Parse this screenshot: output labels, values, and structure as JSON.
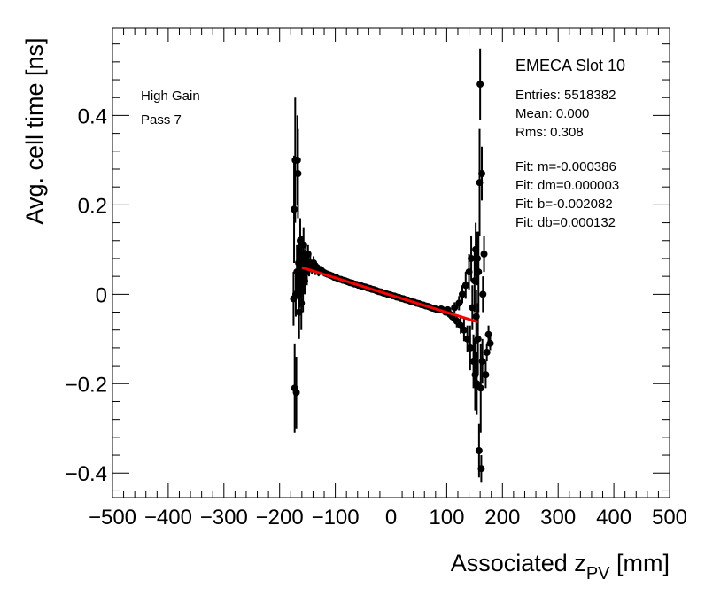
{
  "chart_data": {
    "type": "scatter",
    "xlabel_main": "Associated z",
    "xlabel_sub": "PV",
    "xlabel_unit": " [mm]",
    "ylabel": "Avg. cell time [ns]",
    "xlim": [
      -500,
      500
    ],
    "ylim": [
      -0.455,
      0.595
    ],
    "x_ticks": [
      -500,
      -400,
      -300,
      -200,
      -100,
      0,
      100,
      200,
      300,
      400,
      500
    ],
    "x_tick_labels": [
      "−500",
      "−400",
      "−300",
      "−200",
      "−100",
      "0",
      "100",
      "200",
      "300",
      "400",
      "500"
    ],
    "y_ticks": [
      -0.4,
      -0.2,
      0,
      0.2,
      0.4
    ],
    "y_tick_labels": [
      "−0.4",
      "−0.2",
      "0",
      "0.2",
      "0.4"
    ],
    "grid": false,
    "legend_left": [
      "High Gain",
      "Pass 7"
    ],
    "stats_title": "EMECA Slot 10",
    "stats_lines": [
      "Entries: 5518382",
      "Mean: 0.000",
      "Rms: 0.308",
      "",
      "Fit: m=-0.000386",
      "Fit: dm=0.000003",
      "Fit: b=-0.002082",
      "Fit: db=0.000132"
    ],
    "fit": {
      "slope": -0.000386,
      "intercept": -0.002082,
      "x_range": [
        -160,
        155
      ],
      "color": "#ff0000"
    },
    "marker_color": "#000000",
    "series": [
      {
        "points": [
          [
            -175,
            -0.01,
            0.06
          ],
          [
            -174,
            0.19,
            0.12
          ],
          [
            -173,
            -0.21,
            0.1
          ],
          [
            -172,
            0.3,
            0.14
          ],
          [
            -171,
            0.0,
            0.05
          ],
          [
            -170,
            -0.22,
            0.08
          ],
          [
            -169,
            0.05,
            0.06
          ],
          [
            -168,
            0.3,
            0.1
          ],
          [
            -167,
            0.27,
            0.1
          ],
          [
            -166,
            0.07,
            0.05
          ],
          [
            -165,
            -0.04,
            0.06
          ],
          [
            -164,
            0.02,
            0.05
          ],
          [
            -163,
            0.12,
            0.05
          ],
          [
            -162,
            0.03,
            0.04
          ],
          [
            -161,
            -0.02,
            0.06
          ],
          [
            -160,
            0.09,
            0.04
          ],
          [
            -159,
            0.04,
            0.04
          ],
          [
            -158,
            0.01,
            0.05
          ],
          [
            -157,
            0.11,
            0.04
          ],
          [
            -156,
            0.07,
            0.03
          ],
          [
            -155,
            0.03,
            0.03
          ],
          [
            -153,
            0.08,
            0.03
          ],
          [
            -151,
            0.05,
            0.03
          ],
          [
            -149,
            0.09,
            0.02
          ],
          [
            -147,
            0.06,
            0.02
          ],
          [
            -145,
            0.07,
            0.02
          ],
          [
            -142,
            0.06,
            0.015
          ],
          [
            -139,
            0.07,
            0.015
          ],
          [
            -136,
            0.055,
            0.012
          ],
          [
            -133,
            0.06,
            0.01
          ],
          [
            -130,
            0.05,
            0.01
          ],
          [
            -126,
            0.055,
            0.008
          ],
          [
            -122,
            0.05,
            0.008
          ],
          [
            -118,
            0.047,
            0.006
          ],
          [
            -114,
            0.045,
            0.006
          ],
          [
            -110,
            0.043,
            0.005
          ],
          [
            -106,
            0.041,
            0.005
          ],
          [
            -102,
            0.038,
            0.004
          ],
          [
            -98,
            0.037,
            0.004
          ],
          [
            -94,
            0.034,
            0.004
          ],
          [
            -90,
            0.033,
            0.003
          ],
          [
            -86,
            0.031,
            0.003
          ],
          [
            -82,
            0.03,
            0.003
          ],
          [
            -78,
            0.028,
            0.003
          ],
          [
            -74,
            0.026,
            0.003
          ],
          [
            -70,
            0.025,
            0.003
          ],
          [
            -66,
            0.023,
            0.003
          ],
          [
            -62,
            0.022,
            0.003
          ],
          [
            -58,
            0.02,
            0.003
          ],
          [
            -54,
            0.019,
            0.003
          ],
          [
            -50,
            0.017,
            0.003
          ],
          [
            -46,
            0.016,
            0.003
          ],
          [
            -42,
            0.014,
            0.003
          ],
          [
            -38,
            0.013,
            0.003
          ],
          [
            -34,
            0.011,
            0.003
          ],
          [
            -30,
            0.01,
            0.003
          ],
          [
            -26,
            0.008,
            0.003
          ],
          [
            -22,
            0.006,
            0.003
          ],
          [
            -18,
            0.005,
            0.003
          ],
          [
            -14,
            0.003,
            0.003
          ],
          [
            -10,
            0.002,
            0.003
          ],
          [
            -6,
            0.0,
            0.003
          ],
          [
            -2,
            -0.001,
            0.003
          ],
          [
            2,
            -0.003,
            0.003
          ],
          [
            6,
            -0.004,
            0.003
          ],
          [
            10,
            -0.006,
            0.003
          ],
          [
            14,
            -0.007,
            0.003
          ],
          [
            18,
            -0.009,
            0.003
          ],
          [
            22,
            -0.01,
            0.003
          ],
          [
            26,
            -0.012,
            0.003
          ],
          [
            30,
            -0.013,
            0.003
          ],
          [
            34,
            -0.015,
            0.003
          ],
          [
            38,
            -0.017,
            0.003
          ],
          [
            42,
            -0.018,
            0.003
          ],
          [
            46,
            -0.02,
            0.003
          ],
          [
            50,
            -0.021,
            0.003
          ],
          [
            54,
            -0.023,
            0.003
          ],
          [
            58,
            -0.024,
            0.003
          ],
          [
            62,
            -0.026,
            0.003
          ],
          [
            66,
            -0.027,
            0.004
          ],
          [
            70,
            -0.029,
            0.004
          ],
          [
            74,
            -0.031,
            0.004
          ],
          [
            78,
            -0.032,
            0.004
          ],
          [
            82,
            -0.034,
            0.005
          ],
          [
            86,
            -0.035,
            0.005
          ],
          [
            90,
            -0.033,
            0.006
          ],
          [
            94,
            -0.036,
            0.006
          ],
          [
            98,
            -0.04,
            0.007
          ],
          [
            102,
            -0.035,
            0.008
          ],
          [
            106,
            -0.045,
            0.009
          ],
          [
            110,
            -0.05,
            0.01
          ],
          [
            114,
            -0.03,
            0.012
          ],
          [
            118,
            -0.06,
            0.014
          ],
          [
            122,
            -0.02,
            0.016
          ],
          [
            125,
            -0.07,
            0.018
          ],
          [
            128,
            0.0,
            0.02
          ],
          [
            131,
            -0.08,
            0.025
          ],
          [
            134,
            0.02,
            0.03
          ],
          [
            137,
            -0.1,
            0.03
          ],
          [
            140,
            0.05,
            0.04
          ],
          [
            142,
            -0.12,
            0.05
          ],
          [
            144,
            0.08,
            0.05
          ],
          [
            146,
            -0.03,
            0.05
          ],
          [
            148,
            -0.15,
            0.06
          ],
          [
            150,
            0.03,
            0.07
          ],
          [
            151,
            -0.18,
            0.08
          ],
          [
            152,
            0.1,
            0.06
          ],
          [
            153,
            -0.05,
            0.06
          ],
          [
            154,
            -0.2,
            0.07
          ],
          [
            155,
            0.08,
            0.06
          ],
          [
            156,
            -0.1,
            0.08
          ],
          [
            157,
            0.05,
            0.09
          ],
          [
            158,
            -0.35,
            0.06
          ],
          [
            159,
            0.25,
            0.12
          ],
          [
            160,
            0.47,
            0.08
          ],
          [
            161,
            -0.21,
            0.1
          ],
          [
            162,
            -0.39,
            0.03
          ],
          [
            163,
            0.27,
            0.06
          ],
          [
            164,
            -0.15,
            0.05
          ],
          [
            165,
            0.0,
            0.04
          ],
          [
            167,
            0.09,
            0.04
          ],
          [
            170,
            -0.18,
            0.03
          ],
          [
            172,
            -0.13,
            0.02
          ],
          [
            175,
            -0.09,
            0.02
          ],
          [
            178,
            -0.11,
            0.015
          ]
        ]
      }
    ]
  }
}
